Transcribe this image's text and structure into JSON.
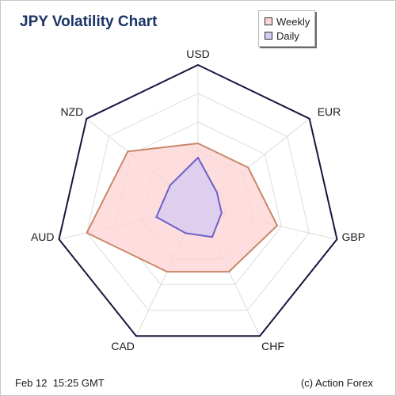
{
  "chart_data": {
    "type": "radar",
    "title": "JPY Volatility Chart",
    "axes": [
      "USD",
      "EUR",
      "GBP",
      "CHF",
      "CAD",
      "AUD",
      "NZD"
    ],
    "max": 1.0,
    "rings": 4,
    "legend_position": "top-right",
    "series": [
      {
        "name": "Weekly",
        "values": [
          0.45,
          0.45,
          0.57,
          0.5,
          0.5,
          0.8,
          0.63
        ],
        "fill": "#fdd4d4",
        "stroke": "#c88768"
      },
      {
        "name": "Daily",
        "values": [
          0.35,
          0.17,
          0.17,
          0.23,
          0.2,
          0.3,
          0.25
        ],
        "fill": "#d6ccf2",
        "stroke": "#6c5fcb"
      }
    ]
  },
  "colors": {
    "title": "#1b3468",
    "outline": "#15163f",
    "grid": "#dcdcdc"
  },
  "footer": {
    "timestamp": "Feb 12  15:25 GMT",
    "credit": "(c) Action Forex"
  }
}
